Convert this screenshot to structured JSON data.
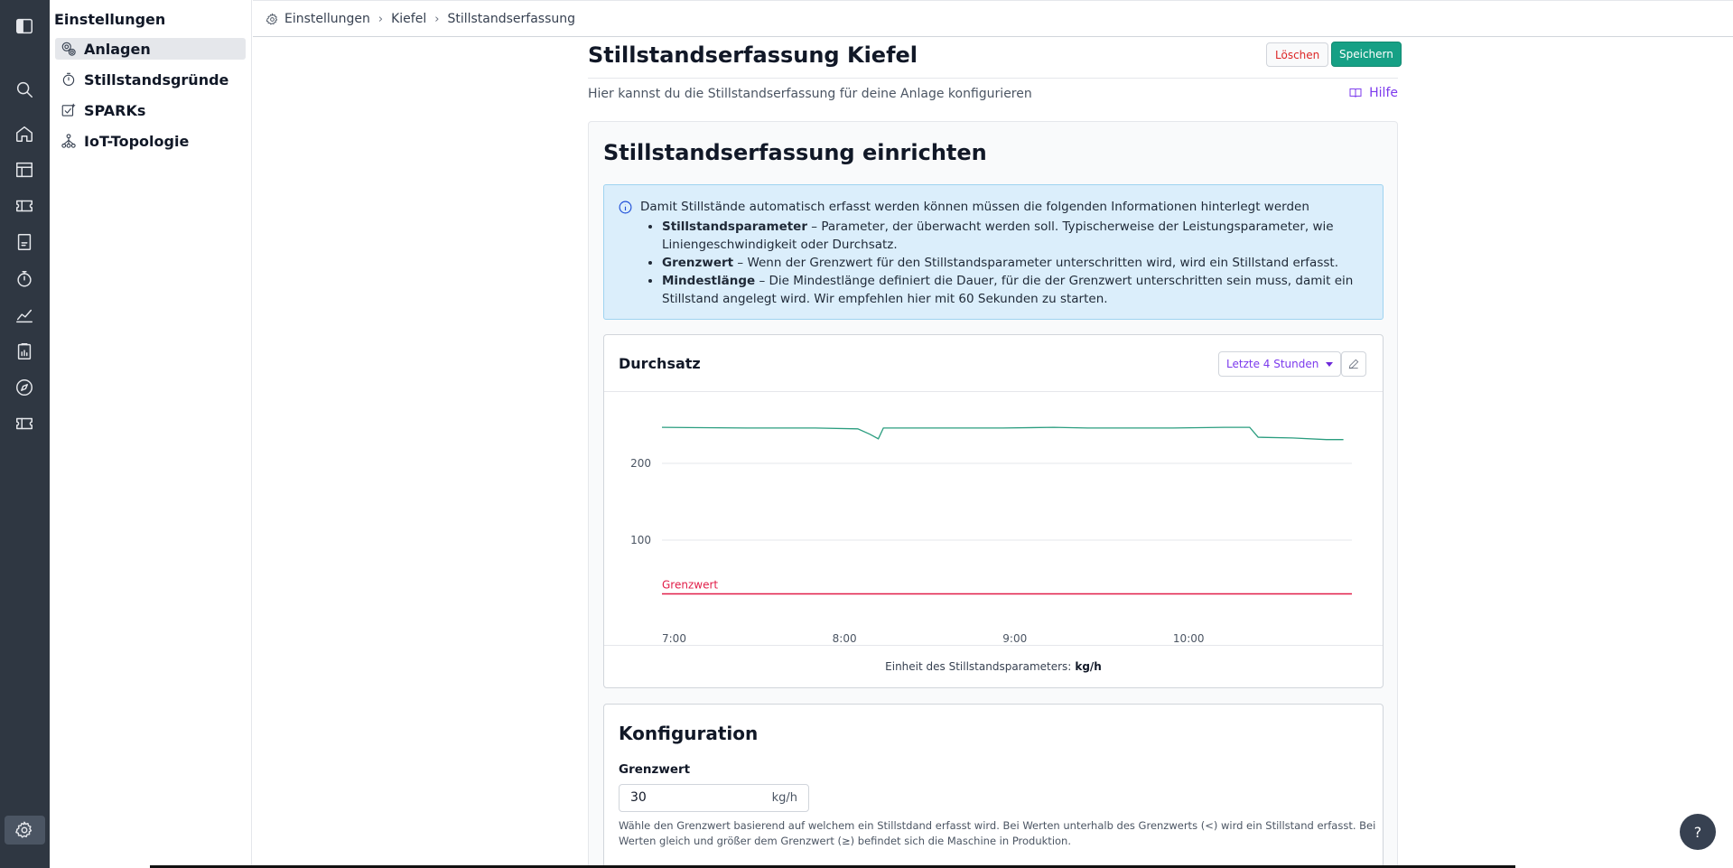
{
  "sidebar": {
    "title": "Einstellungen",
    "items": [
      {
        "label": "Anlagen",
        "active": true,
        "icon": "gears-icon"
      },
      {
        "label": "Stillstandsgründe",
        "icon": "stopwatch-icon"
      },
      {
        "label": "SPARKs",
        "icon": "spark-icon"
      },
      {
        "label": "IoT-Topologie",
        "icon": "topology-icon"
      }
    ]
  },
  "breadcrumb": {
    "icon": "gear-icon",
    "items": [
      "Einstellungen",
      "Kiefel",
      "Stillstandserfassung"
    ]
  },
  "page": {
    "title": "Stillstandserfassung Kiefel",
    "delete_label": "Löschen",
    "save_label": "Speichern",
    "subtitle": "Hier kannst du die Stillstandserfassung für deine Anlage konfigurieren",
    "help_label": "Hilfe"
  },
  "setup": {
    "title": "Stillstandserfassung einrichten",
    "info_lead": "Damit Stillstände automatisch erfasst werden können müssen die folgenden Informationen hinterlegt werden",
    "info_items": [
      {
        "term": "Stillstandsparameter",
        "text": " – Parameter, der überwacht werden soll. Typischerweise der Leistungsparameter, wie Liniengeschwindigkeit oder Durchsatz."
      },
      {
        "term": "Grenzwert",
        "text": " – Wenn der Grenzwert für den Stillstandsparameter unterschritten wird, wird ein Stillstand erfasst."
      },
      {
        "term": "Mindestlänge",
        "text": " – Die Mindestlänge definiert die Dauer, für die der Grenzwert unterschritten sein muss, damit ein Stillstand angelegt wird. Wir empfehlen hier mit 60 Sekunden zu starten."
      }
    ]
  },
  "chart_panel": {
    "title": "Durchsatz",
    "range_label": "Letzte 4 Stunden",
    "footer_label": "Einheit des Stillstandsparameters:",
    "footer_unit": "kg/h"
  },
  "chart_data": {
    "type": "line",
    "x_ticks": [
      "7:00",
      "8:00",
      "9:00",
      "10:00"
    ],
    "y_ticks": [
      100,
      200
    ],
    "ylim": [
      0,
      280
    ],
    "xlim_hours": [
      7.0,
      11.05
    ],
    "series": [
      {
        "color": "#2a9d7f",
        "x": [
          7.0,
          7.5,
          7.9,
          8.15,
          8.22,
          8.27,
          8.3,
          8.5,
          9.0,
          9.3,
          9.5,
          10.0,
          10.3,
          10.45,
          10.5,
          10.7,
          10.9,
          11.0
        ],
        "y": [
          247,
          246,
          246,
          245,
          238,
          232,
          246,
          246,
          246,
          247,
          246,
          246,
          247,
          247,
          234,
          233,
          231,
          231
        ]
      }
    ],
    "threshold": {
      "label": "Grenzwert",
      "value": 30,
      "color": "#e11d48"
    },
    "grid": true
  },
  "config": {
    "title": "Konfiguration",
    "threshold_label": "Grenzwert",
    "threshold_value": "30",
    "threshold_unit": "kg/h",
    "threshold_help": "Wähle den Grenzwert basierend auf welchem ein Stillstdand erfasst wird. Bei Werten unterhalb des Grenzwerts (<) wird ein Stillstand erfasst. Bei Werten gleich und größer dem Grenzwert (≥) befindet sich die Maschine in Produktion."
  },
  "fab": {
    "label": "?"
  }
}
